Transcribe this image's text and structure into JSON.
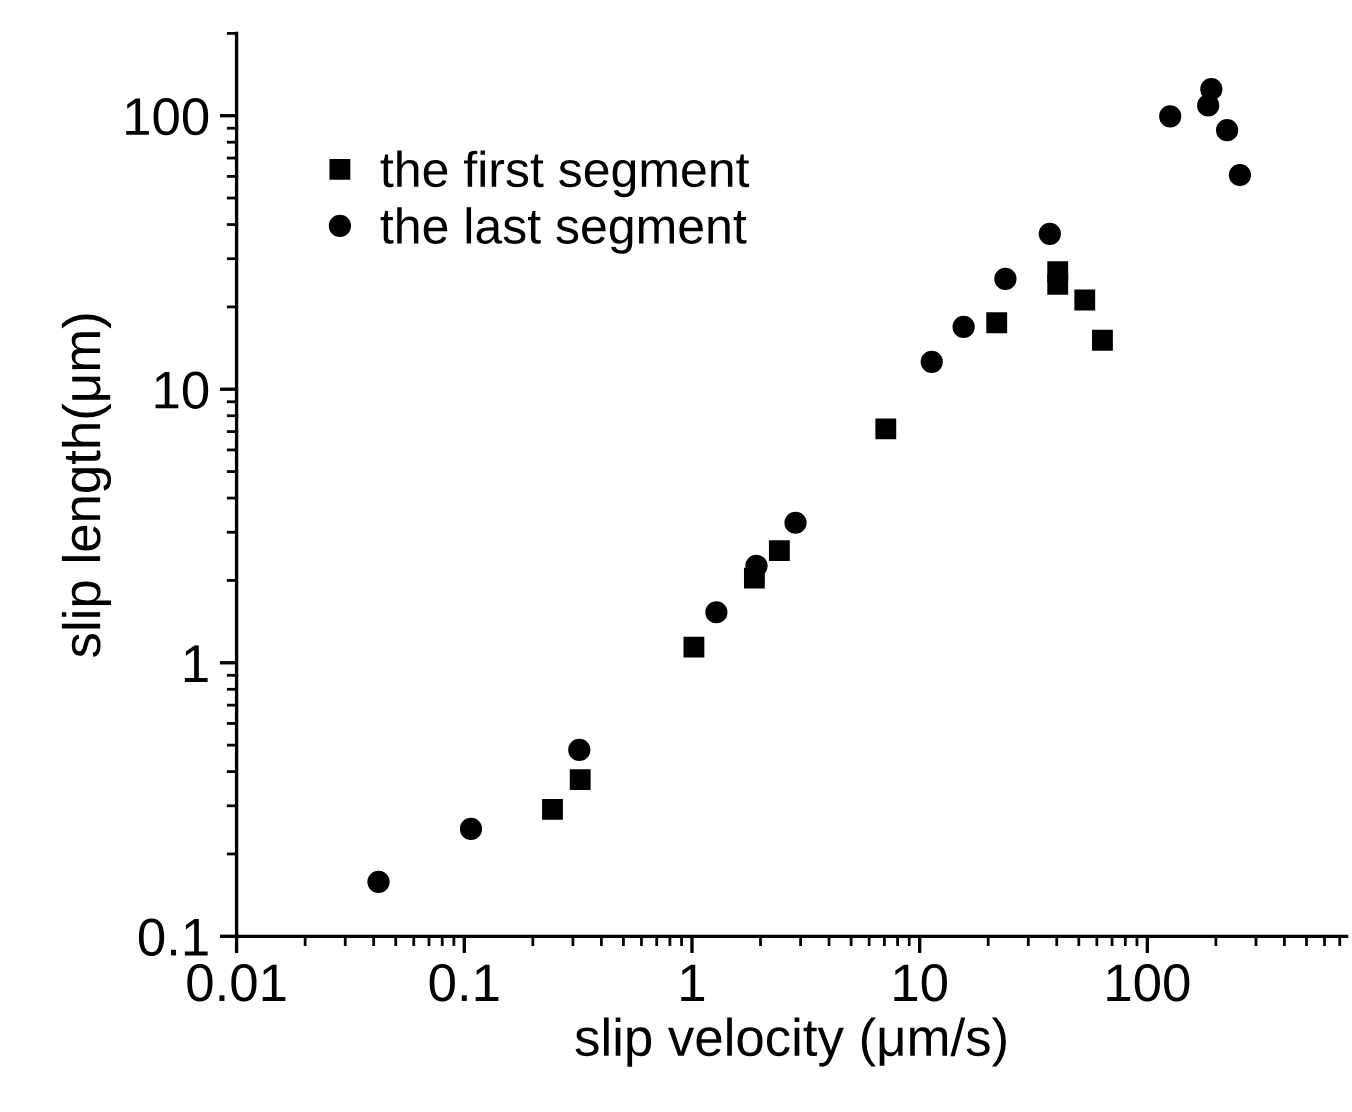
{
  "chart_data": {
    "type": "scatter",
    "xlabel": "slip velocity (μm/s)",
    "ylabel": "slip length(μm)",
    "log": "xy",
    "xlim": [
      0.01,
      750
    ],
    "ylim": [
      0.1,
      200
    ],
    "xticks": [
      0.01,
      0.1,
      1,
      10,
      100
    ],
    "yticks": [
      0.1,
      1,
      10,
      100
    ],
    "grid": false,
    "legend": "top left",
    "series": [
      {
        "name": "the first segment",
        "color": "#000000",
        "marker": "square",
        "x": [
          0.244,
          0.323,
          1.02,
          1.88,
          2.42,
          7.1,
          21.8,
          40.4,
          40.4,
          53.1,
          63.5
        ],
        "values": [
          0.291,
          0.374,
          1.14,
          2.04,
          2.57,
          7.16,
          17.5,
          26.9,
          24.2,
          21.2,
          15.1
        ]
      },
      {
        "name": "the last segment",
        "color": "#000000",
        "marker": "circle",
        "x": [
          0.042,
          0.107,
          0.32,
          1.28,
          1.92,
          2.85,
          11.3,
          15.6,
          23.8,
          37.3,
          126,
          185,
          191,
          224,
          255
        ],
        "values": [
          0.158,
          0.247,
          0.48,
          1.53,
          2.26,
          3.25,
          12.6,
          16.9,
          25.3,
          37.0,
          99.5,
          109,
          125,
          88.5,
          60.7
        ]
      }
    ]
  }
}
